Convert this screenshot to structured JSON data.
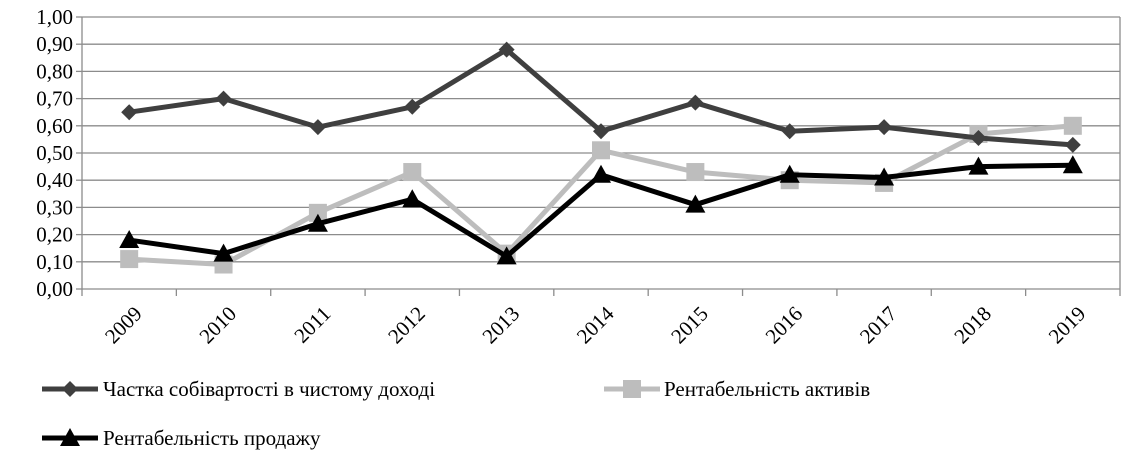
{
  "chart_data": {
    "type": "line",
    "categories": [
      "2009",
      "2010",
      "2011",
      "2012",
      "2013",
      "2014",
      "2015",
      "2016",
      "2017",
      "2018",
      "2019"
    ],
    "series": [
      {
        "name": "Частка собівартості в чистому доході",
        "color": "#3f3f3f",
        "marker": "diamond",
        "values": [
          0.65,
          0.7,
          0.595,
          0.67,
          0.88,
          0.58,
          0.685,
          0.58,
          0.595,
          0.555,
          0.53
        ]
      },
      {
        "name": "Рентабельність активів",
        "color": "#bdbdbd",
        "marker": "square",
        "values": [
          0.11,
          0.09,
          0.28,
          0.43,
          0.13,
          0.51,
          0.43,
          0.4,
          0.39,
          0.57,
          0.6
        ]
      },
      {
        "name": "Рентабельність продажу",
        "color": "#000000",
        "marker": "triangle",
        "values": [
          0.18,
          0.13,
          0.24,
          0.33,
          0.12,
          0.42,
          0.31,
          0.42,
          0.41,
          0.45,
          0.455
        ]
      }
    ],
    "ylim": [
      0,
      1.0
    ],
    "ytick_step": 0.1,
    "ytick_labels": [
      "0,00",
      "0,10",
      "0,20",
      "0,30",
      "0,40",
      "0,50",
      "0,60",
      "0,70",
      "0,80",
      "0,90",
      "1,00"
    ],
    "grid": true,
    "legend_position": "bottom",
    "title": "",
    "xlabel": "",
    "ylabel": ""
  }
}
